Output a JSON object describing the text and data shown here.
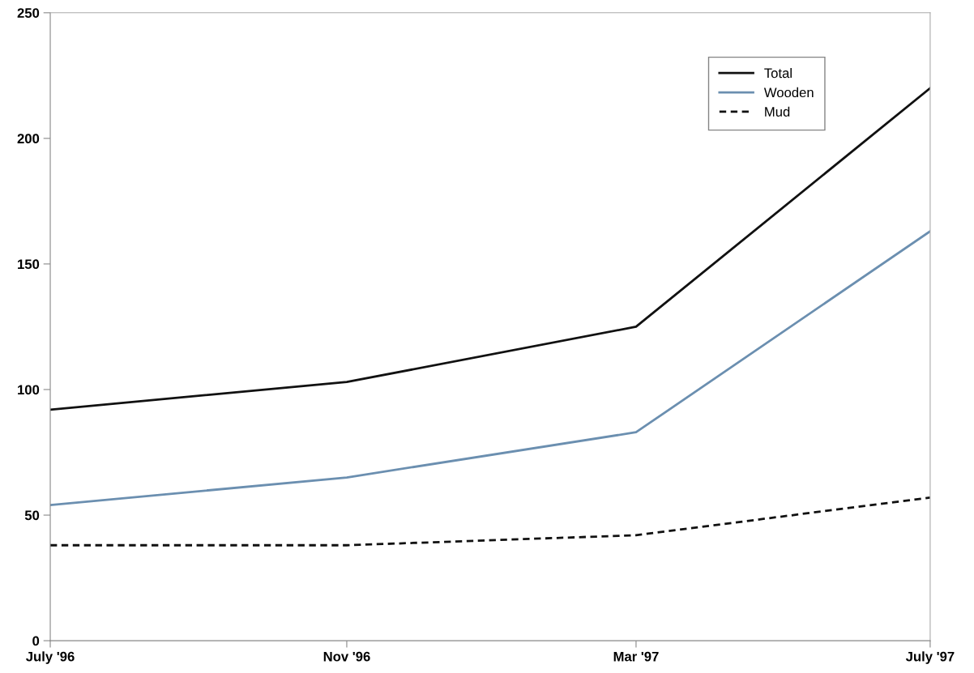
{
  "chart_data": {
    "type": "line",
    "x": [
      "1996-07",
      "1996-11",
      "1997-03",
      "1997-07"
    ],
    "series": [
      {
        "name": "Total",
        "color": "#111111",
        "values": [
          92,
          103,
          125,
          220
        ],
        "line_style": "solid"
      },
      {
        "name": "Wooden",
        "color": "#6b8fb0",
        "values": [
          54,
          65,
          83,
          163
        ],
        "line_style": "solid"
      },
      {
        "name": "Mud",
        "color": "#111111",
        "values": [
          38,
          38,
          42,
          57
        ],
        "line_style": "dashed"
      }
    ],
    "xlim": [
      "1996-07",
      "1997-07"
    ],
    "xticks": [
      {
        "value": "1996-07",
        "label": "July '96"
      },
      {
        "value": "1996-11",
        "label": "Nov '96"
      },
      {
        "value": "1997-03",
        "label": "Mar '97"
      },
      {
        "value": "1997-07",
        "label": "July '97"
      }
    ],
    "ylim": [
      0,
      250
    ],
    "yticks": [
      0,
      50,
      100,
      150,
      200,
      250
    ],
    "grid": false,
    "legend": "top right",
    "marker": "none"
  }
}
